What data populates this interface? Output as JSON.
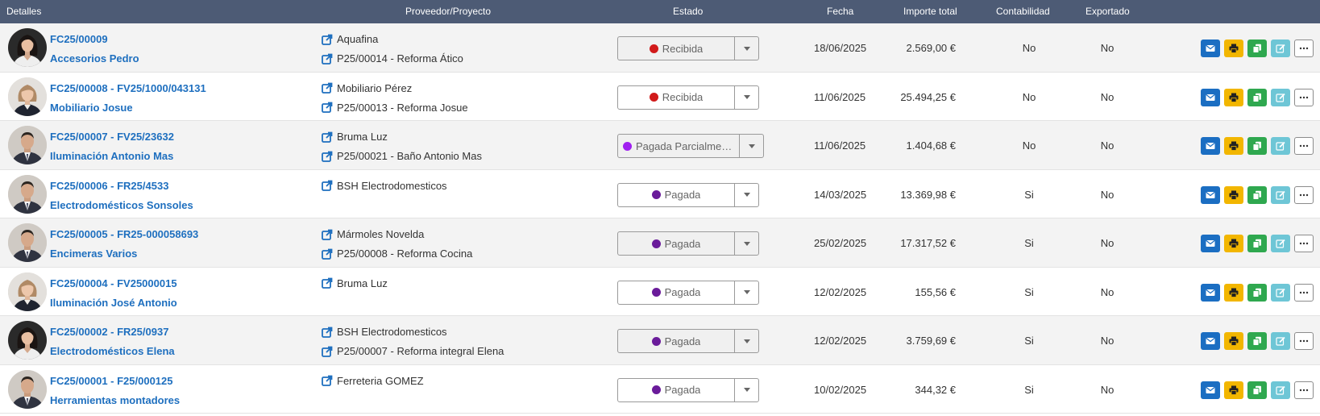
{
  "header": {
    "detalles": "Detalles",
    "proveedor": "Proveedor/Proyecto",
    "estado": "Estado",
    "fecha": "Fecha",
    "importe": "Importe total",
    "contabilidad": "Contabilidad",
    "exportado": "Exportado"
  },
  "status_colors": {
    "Recibida": "#d11a1a",
    "Pagada Parcialmente": "#a020f0",
    "Pagada": "#6a1b9a"
  },
  "rows": [
    {
      "doc": "FC25/00009",
      "name": "Accesorios Pedro",
      "avatar": "woman-dark-hair",
      "proveedor": "Aquafina",
      "proyecto": "P25/00014 - Reforma Ático",
      "estado": "Recibida",
      "fecha": "18/06/2025",
      "importe": "2.569,00 €",
      "contabilidad": "No",
      "exportado": "No"
    },
    {
      "doc": "FC25/00008 - FV25/1000/043131",
      "name": "Mobiliario Josue",
      "avatar": "woman-light-hair",
      "proveedor": "Mobiliario Pérez",
      "proyecto": "P25/00013 - Reforma Josue",
      "estado": "Recibida",
      "fecha": "11/06/2025",
      "importe": "25.494,25 €",
      "contabilidad": "No",
      "exportado": "No"
    },
    {
      "doc": "FC25/00007 - FV25/23632",
      "name": "Iluminación Antonio Mas",
      "avatar": "man-suit",
      "proveedor": "Bruma Luz",
      "proyecto": "P25/00021 - Baño Antonio Mas",
      "estado": "Pagada Parcialme…",
      "fecha": "11/06/2025",
      "importe": "1.404,68 €",
      "contabilidad": "No",
      "exportado": "No"
    },
    {
      "doc": "FC25/00006 - FR25/4533",
      "name": "Electrodomésticos Sonsoles",
      "avatar": "man-suit",
      "proveedor": "BSH Electrodomesticos",
      "proyecto": "",
      "estado": "Pagada",
      "fecha": "14/03/2025",
      "importe": "13.369,98 €",
      "contabilidad": "Si",
      "exportado": "No"
    },
    {
      "doc": "FC25/00005 - FR25-000058693",
      "name": "Encimeras Varios",
      "avatar": "man-suit",
      "proveedor": "Mármoles Novelda",
      "proyecto": "P25/00008 - Reforma Cocina",
      "estado": "Pagada",
      "fecha": "25/02/2025",
      "importe": "17.317,52 €",
      "contabilidad": "Si",
      "exportado": "No"
    },
    {
      "doc": "FC25/00004 - FV25000015",
      "name": "Iluminación José Antonio",
      "avatar": "woman-light-hair",
      "proveedor": "Bruma Luz",
      "proyecto": "",
      "estado": "Pagada",
      "fecha": "12/02/2025",
      "importe": "155,56 €",
      "contabilidad": "Si",
      "exportado": "No"
    },
    {
      "doc": "FC25/00002 - FR25/0937",
      "name": "Electrodomésticos Elena",
      "avatar": "woman-dark-hair",
      "proveedor": "BSH Electrodomesticos",
      "proyecto": "P25/00007 - Reforma integral Elena",
      "estado": "Pagada",
      "fecha": "12/02/2025",
      "importe": "3.759,69 €",
      "contabilidad": "Si",
      "exportado": "No"
    },
    {
      "doc": "FC25/00001 - F25/000125",
      "name": "Herramientas montadores",
      "avatar": "man-suit",
      "proveedor": "Ferreteria GOMEZ",
      "proyecto": "",
      "estado": "Pagada",
      "fecha": "10/02/2025",
      "importe": "344,32 €",
      "contabilidad": "Si",
      "exportado": "No"
    }
  ],
  "action_icons": [
    "envelope-icon",
    "print-icon",
    "copy-icon",
    "edit-icon",
    "ellipsis-icon"
  ]
}
